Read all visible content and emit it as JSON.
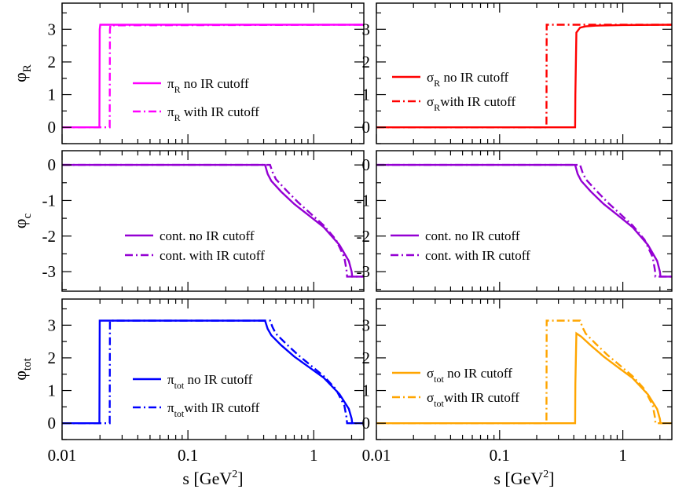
{
  "chart_data": [
    {
      "type": "line",
      "panel": "top-left",
      "ylabel": "φ",
      "ylabel_sub": "R",
      "ylim": [
        -0.5,
        3.8
      ],
      "xlim": [
        0.01,
        2.5
      ],
      "xscale": "log",
      "yticks": [
        "0",
        "1",
        "2",
        "3"
      ],
      "color": "#ff00ff",
      "legend_position": "center",
      "series": [
        {
          "name": "π",
          "name_sub": "R",
          "name_rest": " no IR cutoff",
          "style": "solid",
          "x": [
            0.01,
            0.0198,
            0.0199,
            0.0201,
            2.5
          ],
          "y": [
            0,
            0,
            3.0,
            3.14,
            3.14
          ]
        },
        {
          "name": "π",
          "name_sub": "R",
          "name_rest": " with IR cutoff",
          "style": "dashdot",
          "x": [
            0.01,
            0.0239,
            0.024,
            0.0242,
            2.5
          ],
          "y": [
            0,
            0,
            3.0,
            3.12,
            3.14
          ]
        }
      ]
    },
    {
      "type": "line",
      "panel": "top-right",
      "ylim": [
        -0.5,
        3.8
      ],
      "xlim": [
        0.01,
        2.5
      ],
      "xscale": "log",
      "yticks": [
        "0",
        "1",
        "2",
        "3"
      ],
      "color": "#ff0000",
      "legend_position": "center-left",
      "series": [
        {
          "name": "σ",
          "name_sub": "R",
          "name_rest": " no IR cutoff",
          "style": "solid",
          "x": [
            0.01,
            0.41,
            0.412,
            0.42,
            0.45,
            0.5,
            0.6,
            1.0,
            2.5
          ],
          "y": [
            0,
            0,
            1.0,
            2.9,
            3.05,
            3.09,
            3.11,
            3.13,
            3.14
          ]
        },
        {
          "name": "σ",
          "name_sub": "R",
          "name_rest": "with IR cutoff",
          "style": "dashdot",
          "x": [
            0.01,
            0.24,
            0.241,
            0.45,
            2.5
          ],
          "y": [
            0,
            0,
            3.14,
            3.14,
            3.14
          ]
        }
      ]
    },
    {
      "type": "line",
      "panel": "middle-left",
      "ylabel": "φ",
      "ylabel_sub": "c",
      "ylim": [
        -3.55,
        0.4
      ],
      "xlim": [
        0.01,
        2.5
      ],
      "xscale": "log",
      "yticks": [
        "0",
        "-1",
        "-2",
        "-3"
      ],
      "color": "#9400d3",
      "legend_position": "bottom-center",
      "series": [
        {
          "name": "cont. no IR cutoff",
          "style": "solid",
          "x": [
            0.01,
            0.41,
            0.43,
            0.46,
            0.55,
            0.7,
            0.9,
            1.2,
            1.6,
            1.9,
            2.0,
            2.02,
            2.5
          ],
          "y": [
            0,
            0,
            -0.25,
            -0.45,
            -0.75,
            -1.1,
            -1.4,
            -1.75,
            -2.25,
            -2.7,
            -3.0,
            -3.14,
            -3.14
          ]
        },
        {
          "name": "cont. with IR cutoff",
          "style": "dashdot",
          "x": [
            0.01,
            0.45,
            0.47,
            0.5,
            0.6,
            0.75,
            0.9,
            1.2,
            1.5,
            1.75,
            1.82,
            1.84,
            2.5
          ],
          "y": [
            0,
            0,
            -0.2,
            -0.4,
            -0.7,
            -1.05,
            -1.3,
            -1.7,
            -2.1,
            -2.6,
            -2.95,
            -3.14,
            -3.14
          ]
        }
      ]
    },
    {
      "type": "line",
      "panel": "middle-right",
      "ylim": [
        -3.55,
        0.4
      ],
      "xlim": [
        0.01,
        2.5
      ],
      "xscale": "log",
      "yticks": [
        "0",
        "-1",
        "-2",
        "-3"
      ],
      "color": "#9400d3",
      "legend_position": "bottom-left",
      "series": [
        {
          "name": "cont. no IR cutoff",
          "style": "solid",
          "x": [
            0.01,
            0.41,
            0.43,
            0.46,
            0.55,
            0.7,
            0.9,
            1.2,
            1.6,
            1.9,
            2.0,
            2.02,
            2.5
          ],
          "y": [
            0,
            0,
            -0.25,
            -0.45,
            -0.75,
            -1.1,
            -1.4,
            -1.75,
            -2.25,
            -2.7,
            -3.0,
            -3.14,
            -3.14
          ]
        },
        {
          "name": "cont. with IR cutoff",
          "style": "dashdot",
          "x": [
            0.01,
            0.45,
            0.47,
            0.5,
            0.6,
            0.75,
            0.9,
            1.2,
            1.5,
            1.75,
            1.82,
            1.84,
            2.5
          ],
          "y": [
            0,
            0,
            -0.2,
            -0.4,
            -0.7,
            -1.05,
            -1.3,
            -1.7,
            -2.1,
            -2.6,
            -2.95,
            -3.14,
            -3.14
          ]
        }
      ]
    },
    {
      "type": "line",
      "panel": "bottom-left",
      "ylabel": "φ",
      "ylabel_sub": "tot",
      "xlabel": "s [GeV",
      "xlabel_sup": "2",
      "xlabel_end": "]",
      "ylim": [
        -0.5,
        3.8
      ],
      "xlim": [
        0.01,
        2.5
      ],
      "xscale": "log",
      "yticks": [
        "0",
        "1",
        "2",
        "3"
      ],
      "xticks": [
        {
          "value": 0.01,
          "label": "0.01"
        },
        {
          "value": 0.1,
          "label": "0.1"
        },
        {
          "value": 1,
          "label": "1"
        }
      ],
      "color": "#0000ff",
      "legend_position": "center",
      "series": [
        {
          "name": "π",
          "name_sub": "tot",
          "name_rest": " no IR cutoff",
          "style": "solid",
          "x": [
            0.01,
            0.0198,
            0.0199,
            0.41,
            0.43,
            0.46,
            0.55,
            0.7,
            0.9,
            1.2,
            1.6,
            1.9,
            2.0,
            2.02,
            2.5
          ],
          "y": [
            0,
            0,
            3.14,
            3.14,
            2.89,
            2.69,
            2.39,
            2.04,
            1.74,
            1.39,
            0.89,
            0.44,
            0.14,
            0,
            0
          ]
        },
        {
          "name": "π",
          "name_sub": "tot",
          "name_rest": "with IR cutoff",
          "style": "dashdot",
          "x": [
            0.01,
            0.0239,
            0.024,
            0.45,
            0.47,
            0.5,
            0.6,
            0.75,
            0.9,
            1.2,
            1.5,
            1.75,
            1.82,
            1.84,
            2.5
          ],
          "y": [
            0,
            0,
            3.14,
            3.14,
            2.94,
            2.74,
            2.44,
            2.09,
            1.84,
            1.44,
            1.04,
            0.54,
            0.19,
            0,
            0
          ]
        }
      ]
    },
    {
      "type": "line",
      "panel": "bottom-right",
      "xlabel": "s [GeV",
      "xlabel_sup": "2",
      "xlabel_end": "]",
      "ylim": [
        -0.5,
        3.8
      ],
      "xlim": [
        0.01,
        2.5
      ],
      "xscale": "log",
      "yticks": [
        "0",
        "1",
        "2",
        "3"
      ],
      "xticks": [
        {
          "value": 0.01,
          "label": "0.01"
        },
        {
          "value": 0.1,
          "label": "0.1"
        },
        {
          "value": 1,
          "label": "1"
        }
      ],
      "color": "#ffa500",
      "legend_position": "center-left",
      "series": [
        {
          "name": "σ",
          "name_sub": "tot",
          "name_rest": " no IR cutoff",
          "style": "solid",
          "x": [
            0.01,
            0.41,
            0.412,
            0.42,
            0.46,
            0.55,
            0.7,
            0.9,
            1.2,
            1.6,
            1.9,
            2.0,
            2.02,
            2.5
          ],
          "y": [
            0,
            0,
            1.2,
            2.75,
            2.65,
            2.38,
            2.04,
            1.73,
            1.38,
            0.88,
            0.43,
            0.13,
            0,
            0
          ]
        },
        {
          "name": "σ",
          "name_sub": "tot",
          "name_rest": "with IR cutoff",
          "style": "dashdot",
          "x": [
            0.01,
            0.24,
            0.241,
            0.45,
            0.47,
            0.5,
            0.6,
            0.75,
            0.9,
            1.2,
            1.5,
            1.75,
            1.82,
            1.84,
            2.5
          ],
          "y": [
            0,
            0,
            3.14,
            3.14,
            2.94,
            2.74,
            2.44,
            2.09,
            1.84,
            1.44,
            1.04,
            0.54,
            0.19,
            0,
            0
          ]
        }
      ]
    }
  ]
}
